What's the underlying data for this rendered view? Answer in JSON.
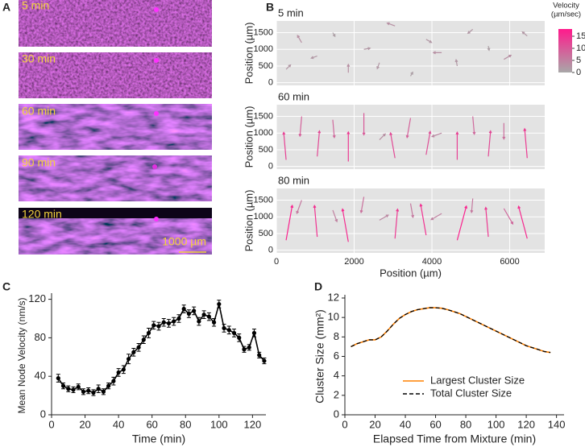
{
  "panel_labels": [
    "A",
    "B",
    "C",
    "D"
  ],
  "panel_a": {
    "labels": [
      "5 min",
      "30 min",
      "60 min",
      "90 min",
      "120 min"
    ],
    "scale_bar": "1000 µm"
  },
  "chart_data": [
    {
      "type": "quiver",
      "title": "5 min",
      "ylabel": "Position (µm)",
      "xlim": [
        0,
        6900
      ],
      "ylim": [
        -80,
        1850
      ],
      "xticks": [
        0,
        2000,
        4000,
        6000
      ],
      "yticks": [
        0,
        500,
        1000,
        1500
      ],
      "show_xtick_labels": false,
      "grid": true,
      "x": [
        250,
        650,
        1050,
        1450,
        1850,
        2250,
        2650,
        3050,
        3450,
        3850,
        4250,
        4650,
        5050,
        5450,
        5850,
        6450
      ],
      "y": [
        400,
        1200,
        800,
        1500,
        300,
        1000,
        600,
        1700,
        200,
        1300,
        900,
        500,
        1600,
        1100,
        700,
        1400
      ],
      "values": [
        2,
        3,
        2,
        1,
        3,
        2,
        2,
        3,
        1,
        2,
        3,
        2,
        2,
        1,
        3,
        2
      ],
      "angle": [
        45,
        120,
        200,
        300,
        90,
        10,
        250,
        160,
        60,
        330,
        180,
        100,
        220,
        280,
        30,
        140
      ],
      "colorbar": {
        "label": [
          "Velocity",
          "(µm/sec)"
        ],
        "clim": [
          0,
          18
        ],
        "ticks": [
          0,
          5,
          10,
          15
        ],
        "colors": [
          "#a8a8a8",
          "#ff1a8c"
        ]
      }
    },
    {
      "type": "quiver",
      "title": "60 min",
      "ylabel": "Position (µm)",
      "xlim": [
        0,
        6900
      ],
      "ylim": [
        -80,
        1850
      ],
      "xticks": [
        0,
        2000,
        4000,
        6000
      ],
      "yticks": [
        0,
        500,
        1000,
        1500
      ],
      "show_xtick_labels": false,
      "grid": true,
      "x": [
        250,
        650,
        1050,
        1450,
        1850,
        2250,
        2650,
        3050,
        3450,
        3850,
        4250,
        4650,
        5050,
        5450,
        5850,
        6450
      ],
      "y": [
        200,
        1500,
        300,
        1400,
        150,
        1600,
        800,
        250,
        1450,
        350,
        1000,
        200,
        1500,
        300,
        1300,
        250
      ],
      "values": [
        13,
        9,
        12,
        8,
        14,
        10,
        3,
        12,
        9,
        11,
        4,
        13,
        8,
        12,
        7,
        14
      ],
      "angle": [
        95,
        265,
        85,
        275,
        90,
        270,
        45,
        100,
        260,
        80,
        200,
        90,
        275,
        85,
        270,
        95
      ]
    },
    {
      "type": "quiver",
      "title": "80 min",
      "ylabel": "Position (µm)",
      "xlabel": "Position (µm)",
      "xlim": [
        0,
        6900
      ],
      "ylim": [
        -80,
        1850
      ],
      "xticks": [
        0,
        2000,
        4000,
        6000
      ],
      "yticks": [
        0,
        500,
        1000,
        1500
      ],
      "show_xtick_labels": true,
      "grid": true,
      "x": [
        250,
        650,
        1050,
        1450,
        1850,
        2250,
        2650,
        3050,
        3450,
        3850,
        4250,
        4650,
        5050,
        5450,
        5850,
        6450
      ],
      "y": [
        300,
        1500,
        400,
        1200,
        250,
        1600,
        900,
        350,
        1400,
        450,
        1100,
        300,
        1550,
        400,
        1250,
        350
      ],
      "values": [
        17,
        6,
        15,
        5,
        16,
        7,
        4,
        14,
        6,
        15,
        5,
        17,
        6,
        14,
        8,
        16
      ],
      "angle": [
        80,
        250,
        95,
        290,
        100,
        260,
        30,
        85,
        280,
        100,
        210,
        75,
        265,
        95,
        300,
        105
      ]
    },
    {
      "type": "line",
      "xlabel": "Time (min)",
      "ylabel": "Mean Node Velocity (nm/s)",
      "xlim": [
        0,
        128
      ],
      "ylim": [
        0,
        123
      ],
      "xticks": [
        0,
        20,
        40,
        60,
        80,
        100,
        120
      ],
      "yticks": [
        0,
        40,
        80,
        120
      ],
      "markers": true,
      "x": [
        4,
        7,
        10,
        13,
        16,
        19,
        22,
        25,
        28,
        31,
        34,
        37,
        40,
        43,
        46,
        49,
        52,
        55,
        58,
        61,
        64,
        67,
        70,
        73,
        76,
        79,
        82,
        85,
        88,
        91,
        94,
        97,
        100,
        103,
        106,
        109,
        112,
        115,
        118,
        121,
        124,
        127
      ],
      "series": [
        {
          "color": "#000000",
          "values": [
            38,
            30,
            27,
            26,
            29,
            24,
            25,
            23,
            27,
            24,
            30,
            35,
            44,
            47,
            58,
            65,
            70,
            78,
            85,
            93,
            92,
            96,
            95,
            97,
            100,
            110,
            105,
            108,
            97,
            104,
            102,
            96,
            115,
            90,
            88,
            85,
            80,
            68,
            70,
            85,
            62,
            56
          ],
          "errors": [
            4,
            3,
            3,
            3,
            3,
            3,
            3,
            3,
            4,
            3,
            3,
            4,
            4,
            4,
            5,
            4,
            4,
            4,
            5,
            4,
            4,
            4,
            4,
            4,
            4,
            4,
            4,
            4,
            4,
            4,
            4,
            4,
            4,
            4,
            4,
            4,
            4,
            3,
            3,
            4,
            3,
            3
          ]
        }
      ]
    },
    {
      "type": "line",
      "xlabel": "Elapsed Time from Mixture (min)",
      "ylabel": "Cluster Size (mm²)",
      "xlim": [
        0,
        145
      ],
      "ylim": [
        0,
        12
      ],
      "xticks": [
        0,
        20,
        40,
        60,
        80,
        100,
        120,
        140
      ],
      "yticks": [
        0,
        2,
        4,
        6,
        8,
        10,
        12
      ],
      "markers": false,
      "legend": "lower right",
      "x": [
        4,
        8,
        12,
        16,
        20,
        24,
        28,
        32,
        36,
        40,
        44,
        48,
        52,
        56,
        60,
        64,
        68,
        72,
        76,
        80,
        84,
        88,
        92,
        96,
        100,
        104,
        108,
        112,
        116,
        120,
        124,
        128,
        132,
        136
      ],
      "series": [
        {
          "name": "Largest Cluster Size",
          "color": "#ff8000",
          "dashed": false,
          "values": [
            7.0,
            7.3,
            7.5,
            7.7,
            7.7,
            8.0,
            8.6,
            9.3,
            9.9,
            10.3,
            10.6,
            10.8,
            10.9,
            11.0,
            11.0,
            10.95,
            10.8,
            10.6,
            10.4,
            10.1,
            9.8,
            9.5,
            9.2,
            8.9,
            8.6,
            8.3,
            8.0,
            7.7,
            7.4,
            7.1,
            6.9,
            6.7,
            6.5,
            6.4
          ]
        },
        {
          "name": "Total Cluster Size",
          "color": "#000000",
          "dashed": true,
          "values": [
            7.0,
            7.3,
            7.5,
            7.7,
            7.7,
            8.0,
            8.6,
            9.3,
            9.9,
            10.3,
            10.6,
            10.8,
            10.9,
            11.0,
            11.0,
            10.95,
            10.8,
            10.6,
            10.4,
            10.1,
            9.8,
            9.5,
            9.2,
            8.9,
            8.6,
            8.3,
            8.0,
            7.7,
            7.4,
            7.1,
            6.9,
            6.7,
            6.5,
            6.4
          ]
        }
      ]
    }
  ]
}
